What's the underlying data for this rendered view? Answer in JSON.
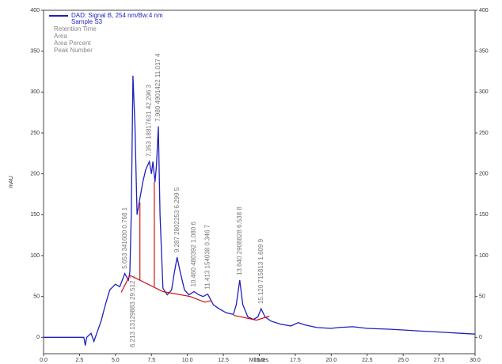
{
  "chart_data": {
    "type": "line",
    "xlabel": "Minutes",
    "ylabel": "mAU",
    "xlim": [
      0,
      30
    ],
    "ylim": [
      -20,
      400
    ],
    "y2lim": [
      -20,
      400
    ],
    "xticks": [
      {
        "value": 0,
        "label": "0.0"
      },
      2.5,
      {
        "value": 5,
        "label": "5.0"
      },
      7.5,
      {
        "value": 10,
        "label": "10.0"
      },
      12.5,
      {
        "value": 15,
        "label": "15.0"
      },
      17.5,
      {
        "value": 20,
        "label": "20.0"
      },
      22.5,
      {
        "value": 25,
        "label": "25.0"
      },
      27.5,
      {
        "value": 30,
        "label": "30.0"
      }
    ],
    "yticks": [
      0,
      50,
      100,
      150,
      200,
      250,
      300,
      350,
      400
    ],
    "y2ticks": [
      0,
      50,
      100,
      150,
      200,
      250,
      300,
      350,
      400
    ],
    "legend_lines": [
      "Sample S3",
      "Retention Time",
      "Area",
      "Area Percent",
      "Peak Number"
    ],
    "series": [
      {
        "name": "DAD: Signal B, 254 nm/Bw:4 nm",
        "color": "#1f1fbf",
        "x": [
          0,
          2.5,
          2.8,
          2.9,
          3.0,
          3.3,
          3.5,
          3.7,
          4.0,
          4.3,
          4.6,
          5.0,
          5.3,
          5.65,
          5.9,
          6.0,
          6.1,
          6.213,
          6.35,
          6.5,
          6.7,
          6.9,
          7.1,
          7.353,
          7.5,
          7.6,
          7.75,
          7.85,
          7.98,
          8.1,
          8.3,
          8.6,
          8.9,
          9.1,
          9.287,
          9.5,
          9.8,
          10.1,
          10.46,
          10.8,
          11.1,
          11.413,
          11.8,
          12.2,
          12.7,
          13.2,
          13.4,
          13.64,
          13.85,
          14.2,
          14.6,
          14.9,
          15.12,
          15.4,
          15.8,
          16.5,
          17.2,
          17.7,
          18.2,
          19.0,
          20.0,
          20.5,
          21.5,
          22.5,
          24.0,
          25.0,
          26.0,
          27.0,
          28.0,
          29.0,
          30.0
        ],
        "values": [
          0,
          0,
          0,
          -10,
          0,
          5,
          -5,
          5,
          20,
          40,
          58,
          65,
          62,
          78,
          70,
          80,
          150,
          320,
          260,
          150,
          170,
          190,
          205,
          215,
          200,
          215,
          190,
          210,
          258,
          150,
          60,
          52,
          58,
          80,
          98,
          80,
          58,
          52,
          56,
          52,
          50,
          53,
          40,
          35,
          30,
          28,
          40,
          70,
          40,
          25,
          22,
          25,
          35,
          25,
          20,
          16,
          14,
          18,
          15,
          12,
          11,
          12,
          13,
          11,
          10,
          9,
          8,
          7,
          6,
          5,
          4
        ]
      },
      {
        "color": "#d01010",
        "x": [
          5.4,
          6.0,
          8.3,
          10.2,
          11.2,
          11.7,
          null,
          13.2,
          14.8,
          15.7
        ],
        "values": [
          55,
          76,
          56,
          50,
          43,
          45,
          null,
          27,
          21,
          26
        ]
      }
    ],
    "drop_lines": [
      {
        "x": 6.7,
        "values": [
          70,
          165
        ]
      },
      {
        "x": 7.7,
        "values": [
          62,
          190
        ]
      }
    ],
    "annotations": [
      {
        "x": 5.653,
        "text": "5.653 341600 0.768 1"
      },
      {
        "x": 6.213,
        "text": "6.213 13129883 29.512 2",
        "position": "bottom"
      },
      {
        "x": 7.353,
        "text": "7.353 18817631 42.296 3"
      },
      {
        "x": 7.98,
        "text": "7.980 4901422 11.017 4"
      },
      {
        "x": 9.287,
        "text": "9.287 2802253 6.299 5"
      },
      {
        "x": 10.46,
        "text": "10.460 480392 1.080 6"
      },
      {
        "x": 11.413,
        "text": "11.413 154038 0.346 7"
      },
      {
        "x": 13.64,
        "text": "13.640 2908828 6.538 8"
      },
      {
        "x": 15.12,
        "text": "15.120 715813 1.609 9"
      }
    ]
  }
}
